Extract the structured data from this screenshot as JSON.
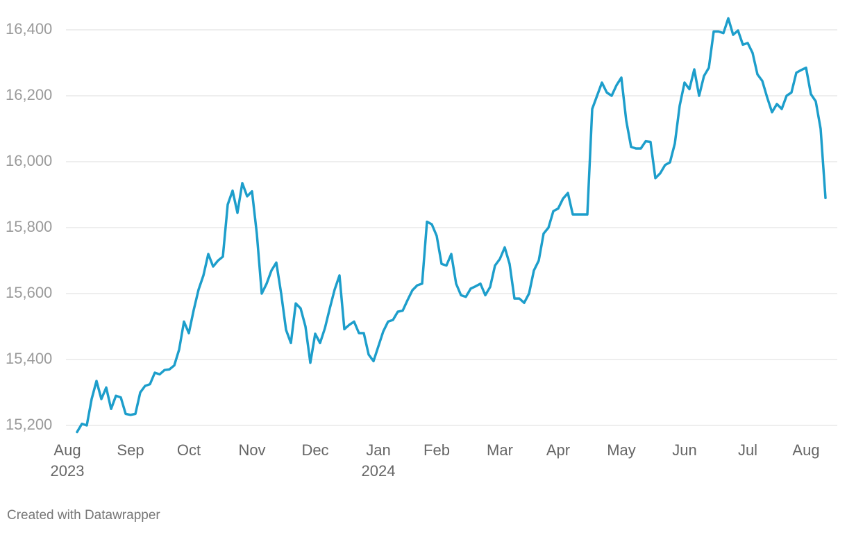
{
  "chart_data": {
    "type": "line",
    "categories": [
      "Aug\n2023",
      null,
      null,
      null,
      null,
      null,
      null,
      null,
      null,
      null,
      null,
      null,
      null,
      "Sep",
      null,
      null,
      null,
      null,
      null,
      null,
      null,
      null,
      null,
      null,
      null,
      "Oct",
      null,
      null,
      null,
      null,
      null,
      null,
      null,
      null,
      null,
      null,
      null,
      null,
      "Nov",
      null,
      null,
      null,
      null,
      null,
      null,
      null,
      null,
      null,
      null,
      null,
      null,
      "Dec",
      null,
      null,
      null,
      null,
      null,
      null,
      null,
      null,
      null,
      null,
      null,
      null,
      "Jan\n2024",
      null,
      null,
      null,
      null,
      null,
      null,
      null,
      null,
      null,
      null,
      null,
      "Feb",
      null,
      null,
      null,
      null,
      null,
      null,
      null,
      null,
      null,
      null,
      null,
      null,
      "Mar",
      null,
      null,
      null,
      null,
      null,
      null,
      null,
      null,
      null,
      null,
      null,
      "Apr",
      null,
      null,
      null,
      null,
      null,
      null,
      null,
      null,
      null,
      null,
      null,
      null,
      "May",
      null,
      null,
      null,
      null,
      null,
      null,
      null,
      null,
      null,
      null,
      null,
      null,
      "Jun",
      null,
      null,
      null,
      null,
      null,
      null,
      null,
      null,
      null,
      null,
      null,
      null,
      "Jul",
      null,
      null,
      null,
      null,
      null,
      null,
      null,
      null,
      null,
      null,
      null,
      "Aug",
      null,
      null,
      null,
      null
    ],
    "values": [
      null,
      null,
      15180,
      15205,
      15200,
      15280,
      15335,
      15280,
      15315,
      15250,
      15290,
      15285,
      15235,
      15232,
      15235,
      15300,
      15320,
      15325,
      15360,
      15355,
      15368,
      15370,
      15382,
      15430,
      15515,
      15480,
      15550,
      15612,
      15655,
      15720,
      15682,
      15700,
      15712,
      15870,
      15912,
      15845,
      15935,
      15895,
      15910,
      15780,
      15600,
      15630,
      15670,
      15694,
      15600,
      15490,
      15450,
      15570,
      15555,
      15500,
      15390,
      15478,
      15450,
      15495,
      15555,
      15612,
      15655,
      15492,
      15505,
      15515,
      15480,
      15480,
      15415,
      15395,
      15440,
      15485,
      15515,
      15520,
      15545,
      15548,
      15580,
      15610,
      15625,
      15630,
      15818,
      15810,
      15775,
      15690,
      15685,
      15720,
      15630,
      15595,
      15590,
      15615,
      15622,
      15630,
      15595,
      15620,
      15685,
      15705,
      15740,
      15690,
      15585,
      15585,
      15572,
      15600,
      15670,
      15700,
      15782,
      15800,
      15850,
      15858,
      15888,
      15905,
      15840,
      15840,
      15840,
      15840,
      16160,
      16200,
      16240,
      16210,
      16200,
      16232,
      16255,
      16125,
      16045,
      16040,
      16040,
      16062,
      16060,
      15950,
      15965,
      15990,
      15998,
      16055,
      16170,
      16240,
      16220,
      16280,
      16200,
      16260,
      16285,
      16395,
      16395,
      16390,
      16435,
      16385,
      16398,
      16355,
      16360,
      16330,
      16265,
      16245,
      16195,
      16150,
      16175,
      16160,
      16200,
      16210,
      16270,
      16278,
      16285,
      16205,
      16183,
      16100,
      15890
    ],
    "color": "#1d9ecb",
    "ylim": [
      15200,
      16400
    ],
    "yticks": [
      {
        "value": 15200,
        "label": "15,200"
      },
      {
        "value": 15400,
        "label": "15,400"
      },
      {
        "value": 15600,
        "label": "15,600"
      },
      {
        "value": 15800,
        "label": "15,800"
      },
      {
        "value": 16000,
        "label": "16,000"
      },
      {
        "value": 16200,
        "label": "16,200"
      },
      {
        "value": 16400,
        "label": "16,400"
      }
    ],
    "grid": true,
    "source": "Created with Datawrapper"
  }
}
